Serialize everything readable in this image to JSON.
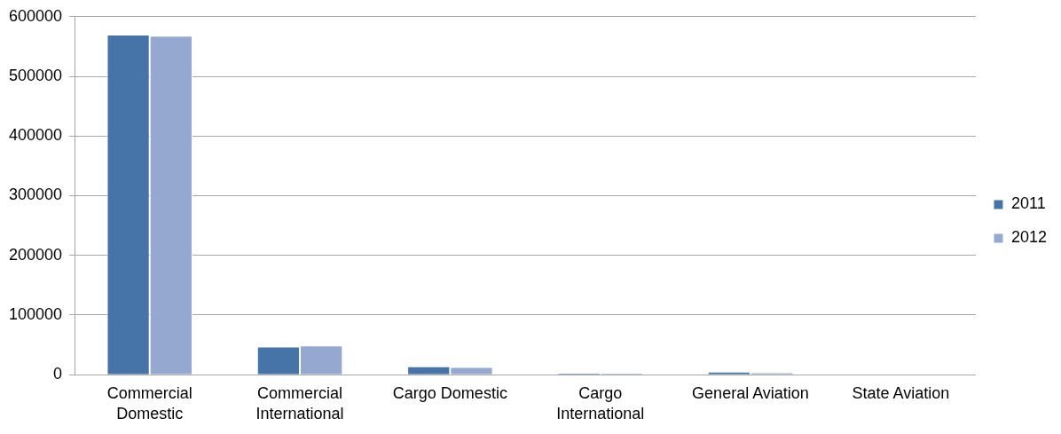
{
  "chart_data": {
    "type": "bar",
    "categories": [
      "Commercial Domestic",
      "Commercial International",
      "Cargo Domestic",
      "Cargo International",
      "General Aviation",
      "State Aviation"
    ],
    "series": [
      {
        "name": "2011",
        "color": "#4673a8",
        "values": [
          570000,
          47000,
          14000,
          3000,
          5000,
          0
        ]
      },
      {
        "name": "2012",
        "color": "#95a9d0",
        "values": [
          568000,
          49000,
          13000,
          3000,
          4000,
          0
        ]
      }
    ],
    "ylim": [
      0,
      600000
    ],
    "yticks": [
      0,
      100000,
      200000,
      300000,
      400000,
      500000,
      600000
    ],
    "grid": "y",
    "legend": "right"
  }
}
